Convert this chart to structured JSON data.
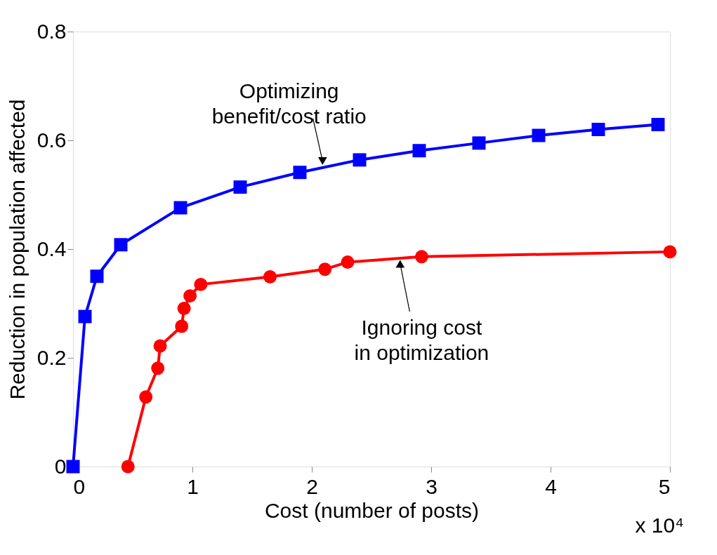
{
  "chart_data": {
    "type": "line",
    "xlabel": "Cost (number of posts)",
    "ylabel": "Reduction in population affected",
    "series": [
      {
        "color": "#0000ff",
        "marker": "square",
        "x": [
          0,
          0.1,
          0.2,
          0.4,
          0.9,
          1.4,
          1.9,
          2.4,
          2.9,
          3.4,
          3.9,
          4.4,
          4.9
        ],
        "values": [
          0,
          0.276,
          0.35,
          0.408,
          0.476,
          0.514,
          0.541,
          0.564,
          0.581,
          0.595,
          0.609,
          0.62,
          0.629
        ]
      },
      {
        "color": "#ff0000",
        "marker": "circle",
        "x": [
          0.46,
          0.61,
          0.71,
          0.73,
          0.91,
          0.93,
          0.98,
          1.07,
          1.65,
          2.11,
          2.3,
          2.92,
          5
        ],
        "values": [
          0,
          0.128,
          0.181,
          0.222,
          0.258,
          0.291,
          0.314,
          0.335,
          0.349,
          0.363,
          0.376,
          0.386,
          0.395
        ]
      }
    ],
    "xlim": [
      0,
      5
    ],
    "ylim": [
      0,
      0.8
    ],
    "xticks": [
      0,
      1,
      2,
      3,
      4,
      5
    ],
    "yticks": [
      0,
      0.2,
      0.4,
      0.6,
      0.8
    ],
    "grid": false,
    "line_style": "solid",
    "annotations": [
      {
        "text": "Optimizing\nbenefit/cost ratio",
        "x": 2.09,
        "y": 0.55
      },
      {
        "text": "Ignoring cost\nin optimization",
        "x": 2.74,
        "y": 0.383
      },
      "x 10⁴"
    ]
  }
}
